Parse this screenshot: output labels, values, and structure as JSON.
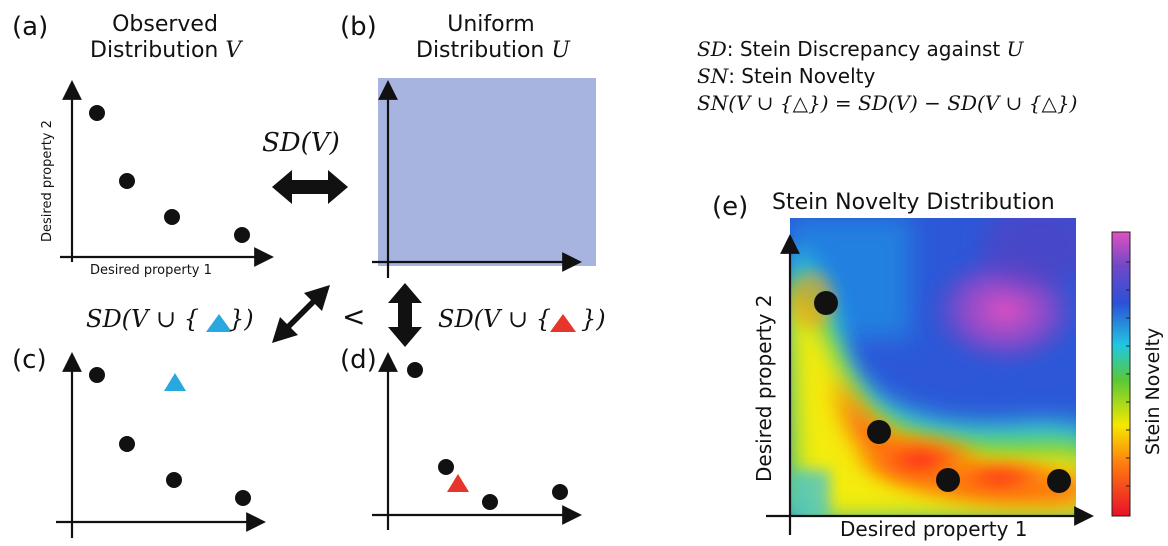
{
  "panels": {
    "a": {
      "label": "(a)",
      "title_line1": "Observed",
      "title_line2": "Distribution",
      "title_var": "V",
      "xlabel": "Desired property 1",
      "ylabel": "Desired property 2"
    },
    "b": {
      "label": "(b)",
      "title_line1": "Uniform",
      "title_line2": "Distribution",
      "title_var": "U"
    },
    "c": {
      "label": "(c)"
    },
    "d": {
      "label": "(d)"
    },
    "e": {
      "label": "(e)",
      "title": "Stein Novelty Distribution",
      "xlabel": "Desired property 1",
      "ylabel": "Desired property 2",
      "colorbar_label": "Stein Novelty"
    }
  },
  "relations": {
    "sd_v": "SD(V)",
    "sd_blue": "SD(V ∪ {",
    "sd_red": "SD(V ∪ {",
    "close_brace": "})",
    "less_than": "<"
  },
  "definitions": {
    "sd_symbol": "SD",
    "sd_text": ": Stein Discrepancy against ",
    "sd_var": "U",
    "sn_symbol": "SN",
    "sn_text": ": Stein Novelty",
    "formula": "SN(V ∪ {△}) = SD(V) − SD(V ∪ {△})"
  },
  "colors": {
    "uniform_fill": "#a8b4e0",
    "blue_marker": "#29a8e0",
    "red_marker": "#e8352b"
  }
}
